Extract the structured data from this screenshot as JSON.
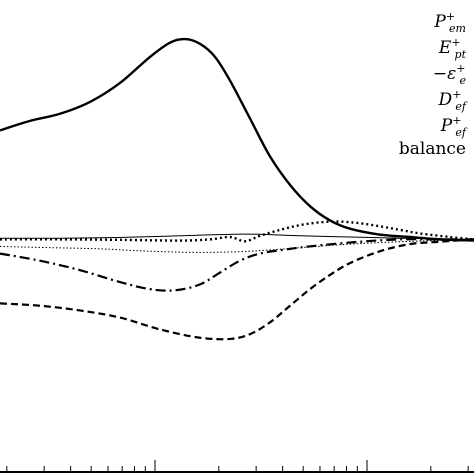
{
  "chart_data": {
    "type": "line",
    "title": "",
    "xlabel": "",
    "ylabel": "",
    "xscale": "log",
    "xlim": [
      0,
      474
    ],
    "ylim": [
      -1,
      1
    ],
    "grid": false,
    "legend_position": "top-right",
    "legend": [
      {
        "base": "P",
        "sub": "em",
        "sup": "+",
        "prefix": ""
      },
      {
        "base": "E",
        "sub": "pt",
        "sup": "+",
        "prefix": ""
      },
      {
        "base": "ε",
        "sub": "e",
        "sup": "+",
        "prefix": "−"
      },
      {
        "base": "D",
        "sub": "ef",
        "sup": "+",
        "prefix": ""
      },
      {
        "base": "P",
        "sub": "ef",
        "sup": "+",
        "prefix": ""
      },
      {
        "base": "balance",
        "sub": "",
        "sup": "",
        "prefix": ""
      }
    ],
    "series": [
      {
        "name": "P_em^+",
        "style": "solid-thick",
        "points": [
          [
            0,
            0.45
          ],
          [
            30,
            0.49
          ],
          [
            60,
            0.52
          ],
          [
            90,
            0.57
          ],
          [
            120,
            0.65
          ],
          [
            150,
            0.76
          ],
          [
            170,
            0.82
          ],
          [
            185,
            0.835
          ],
          [
            200,
            0.815
          ],
          [
            215,
            0.76
          ],
          [
            230,
            0.66
          ],
          [
            250,
            0.5
          ],
          [
            270,
            0.34
          ],
          [
            290,
            0.22
          ],
          [
            310,
            0.13
          ],
          [
            330,
            0.07
          ],
          [
            350,
            0.035
          ],
          [
            380,
            0.01
          ],
          [
            410,
            0.0
          ],
          [
            440,
            -0.01
          ],
          [
            474,
            -0.015
          ]
        ]
      },
      {
        "name": "E_pt^+",
        "style": "dotted-thick",
        "points": [
          [
            0,
            -0.01
          ],
          [
            60,
            -0.01
          ],
          [
            120,
            -0.012
          ],
          [
            180,
            -0.015
          ],
          [
            210,
            -0.01
          ],
          [
            230,
            0.0
          ],
          [
            245,
            -0.018
          ],
          [
            260,
            0.005
          ],
          [
            280,
            0.03
          ],
          [
            300,
            0.05
          ],
          [
            320,
            0.062
          ],
          [
            340,
            0.065
          ],
          [
            360,
            0.058
          ],
          [
            380,
            0.045
          ],
          [
            400,
            0.03
          ],
          [
            420,
            0.015
          ],
          [
            450,
            0.0
          ],
          [
            474,
            -0.01
          ]
        ]
      },
      {
        "name": "-eps_e^+",
        "style": "dashdot",
        "points": [
          [
            0,
            -0.07
          ],
          [
            40,
            -0.1
          ],
          [
            80,
            -0.14
          ],
          [
            120,
            -0.19
          ],
          [
            150,
            -0.22
          ],
          [
            175,
            -0.225
          ],
          [
            200,
            -0.2
          ],
          [
            220,
            -0.15
          ],
          [
            240,
            -0.1
          ],
          [
            260,
            -0.07
          ],
          [
            290,
            -0.05
          ],
          [
            320,
            -0.035
          ],
          [
            360,
            -0.02
          ],
          [
            400,
            -0.01
          ],
          [
            440,
            -0.01
          ],
          [
            474,
            -0.01
          ]
        ]
      },
      {
        "name": "D_ef^+",
        "style": "dashed",
        "points": [
          [
            0,
            -0.28
          ],
          [
            40,
            -0.29
          ],
          [
            80,
            -0.31
          ],
          [
            120,
            -0.34
          ],
          [
            160,
            -0.39
          ],
          [
            200,
            -0.425
          ],
          [
            230,
            -0.43
          ],
          [
            250,
            -0.41
          ],
          [
            270,
            -0.36
          ],
          [
            290,
            -0.29
          ],
          [
            310,
            -0.22
          ],
          [
            330,
            -0.16
          ],
          [
            350,
            -0.11
          ],
          [
            380,
            -0.06
          ],
          [
            410,
            -0.03
          ],
          [
            440,
            -0.02
          ],
          [
            474,
            -0.01
          ]
        ]
      },
      {
        "name": "P_ef^+",
        "style": "dotted-thin",
        "points": [
          [
            0,
            -0.04
          ],
          [
            50,
            -0.045
          ],
          [
            100,
            -0.05
          ],
          [
            150,
            -0.06
          ],
          [
            200,
            -0.065
          ],
          [
            250,
            -0.06
          ],
          [
            300,
            -0.045
          ],
          [
            350,
            -0.03
          ],
          [
            400,
            -0.02
          ],
          [
            474,
            -0.01
          ]
        ]
      },
      {
        "name": "balance",
        "style": "solid-thin",
        "points": [
          [
            0,
            -0.005
          ],
          [
            60,
            -0.005
          ],
          [
            120,
            -0.002
          ],
          [
            180,
            0.005
          ],
          [
            240,
            0.012
          ],
          [
            270,
            0.01
          ],
          [
            300,
            0.005
          ],
          [
            350,
            0.0
          ],
          [
            400,
            -0.005
          ],
          [
            474,
            -0.01
          ]
        ]
      }
    ]
  }
}
